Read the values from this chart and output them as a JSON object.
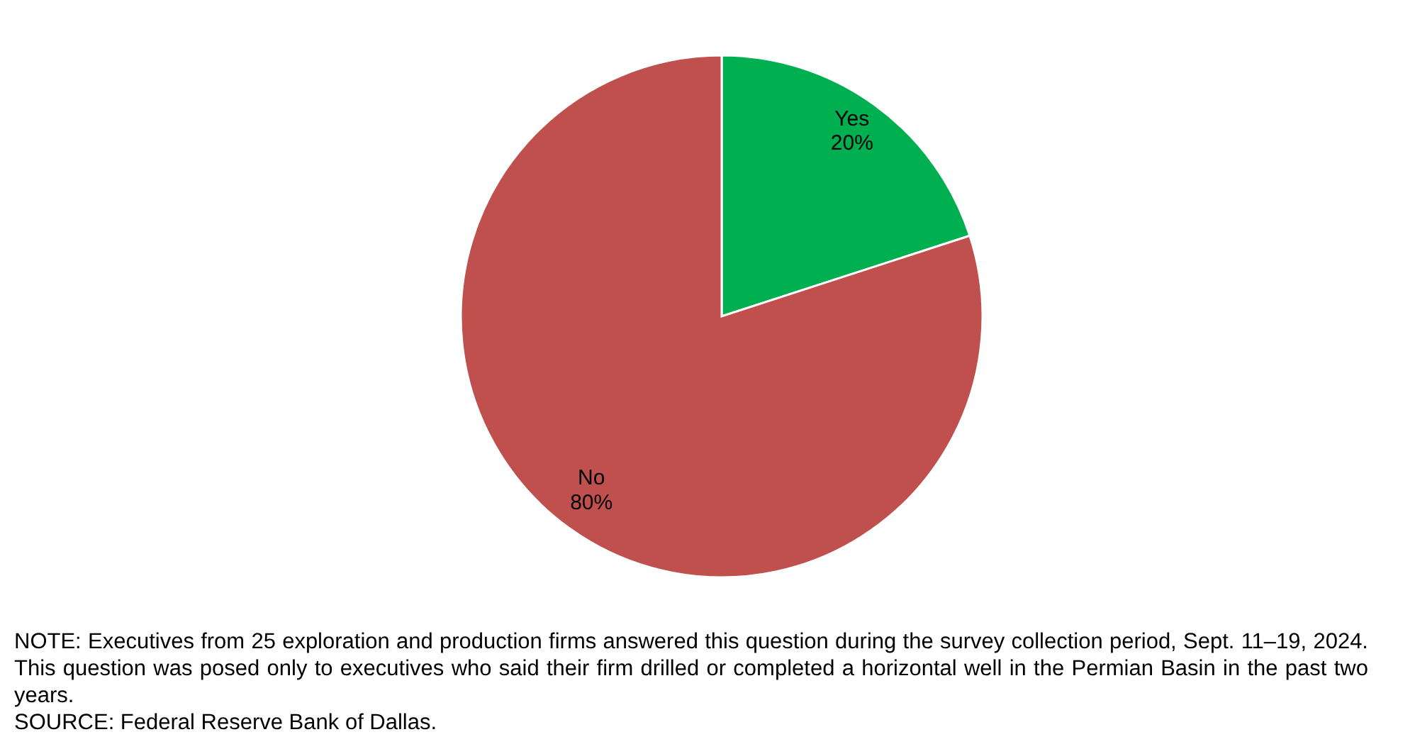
{
  "chart_data": {
    "type": "pie",
    "categories": [
      "Yes",
      "No"
    ],
    "values": [
      20,
      80
    ],
    "colors": [
      "#00b050",
      "#c0504d"
    ],
    "value_labels": [
      "20%",
      "80%"
    ],
    "annotations": [
      "NOTE: Executives from 25 exploration and production firms answered this question during the survey collection period, Sept. 11–19, 2024. This question was posed only to executives who said their firm drilled or completed a horizontal well in the Permian Basin in the past two years.",
      "SOURCE: Federal Reserve Bank of Dallas."
    ]
  }
}
